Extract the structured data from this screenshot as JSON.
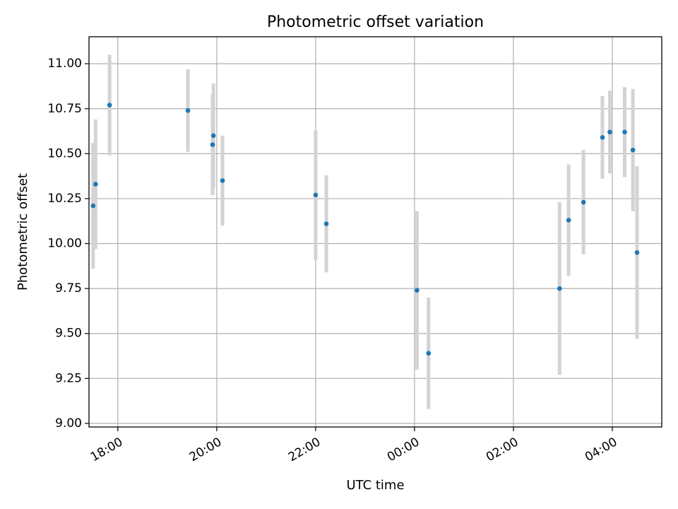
{
  "chart_data": {
    "type": "scatter",
    "title": "Photometric offset variation",
    "xlabel": "UTC time",
    "ylabel": "Photometric offset",
    "x_axis_type": "time",
    "x_range": [
      "17:25",
      "05:00"
    ],
    "ylim": [
      8.98,
      11.15
    ],
    "x_ticks": [
      "18:00",
      "20:00",
      "22:00",
      "00:00",
      "02:00",
      "04:00"
    ],
    "y_ticks": [
      "9.00",
      "9.25",
      "9.50",
      "9.75",
      "10.00",
      "10.25",
      "10.50",
      "10.75",
      "11.00"
    ],
    "grid": true,
    "legend": "none",
    "colors": {
      "points": "#1f77b4",
      "error_bars": "#d3d3d3",
      "grid": "#b0b0b0",
      "axes": "#000000"
    },
    "series": [
      {
        "points": [
          {
            "x": "17:30",
            "y": 10.21,
            "err": 0.35
          },
          {
            "x": "17:33",
            "y": 10.33,
            "err": 0.36
          },
          {
            "x": "17:50",
            "y": 10.77,
            "err": 0.28
          },
          {
            "x": "19:25",
            "y": 10.74,
            "err": 0.23
          },
          {
            "x": "19:55",
            "y": 10.55,
            "err": 0.28
          },
          {
            "x": "19:56",
            "y": 10.6,
            "err": 0.29
          },
          {
            "x": "20:07",
            "y": 10.35,
            "err": 0.25
          },
          {
            "x": "22:00",
            "y": 10.27,
            "err": 0.36
          },
          {
            "x": "22:13",
            "y": 10.11,
            "err": 0.27
          },
          {
            "x": "00:03",
            "y": 9.74,
            "err": 0.44
          },
          {
            "x": "00:17",
            "y": 9.39,
            "err": 0.31
          },
          {
            "x": "02:56",
            "y": 9.75,
            "err": 0.48
          },
          {
            "x": "03:07",
            "y": 10.13,
            "err": 0.31
          },
          {
            "x": "03:25",
            "y": 10.23,
            "err": 0.29
          },
          {
            "x": "03:48",
            "y": 10.59,
            "err": 0.23
          },
          {
            "x": "03:57",
            "y": 10.62,
            "err": 0.23
          },
          {
            "x": "04:15",
            "y": 10.62,
            "err": 0.25
          },
          {
            "x": "04:25",
            "y": 10.52,
            "err": 0.34
          },
          {
            "x": "04:30",
            "y": 9.95,
            "err": 0.48
          }
        ]
      }
    ]
  }
}
